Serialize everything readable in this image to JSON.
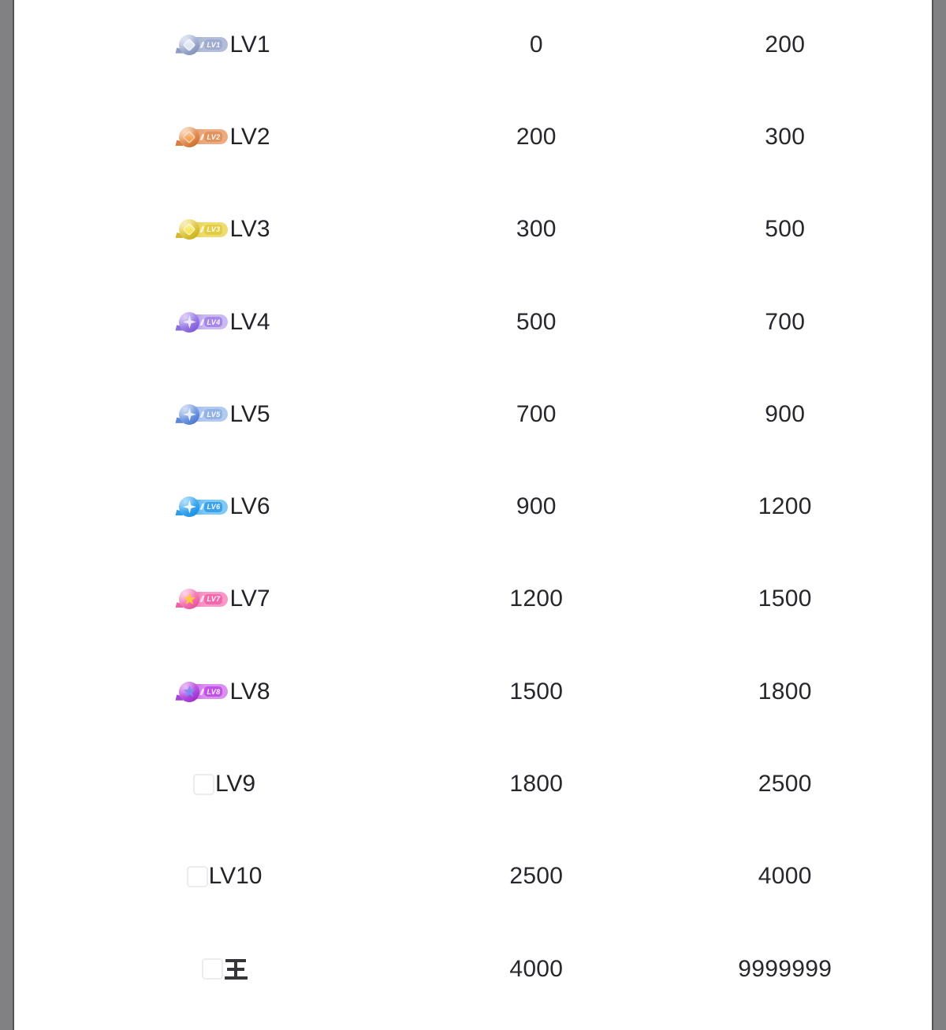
{
  "page": {
    "background": "#ffffff",
    "gutter_color": "#818184",
    "gutter_edge_color": "#545457",
    "text_color": "#27272d"
  },
  "table": {
    "rows": [
      {
        "level": "LV1",
        "min": "0",
        "max": "200",
        "badge": {
          "label": "LV1",
          "shape": "diamond",
          "pill": "#b3bdd9",
          "tag": "#9facd0",
          "circle_from": "#c9d2e8",
          "circle_to": "#8492bc",
          "gem": "#dfe5f4"
        }
      },
      {
        "level": "LV2",
        "min": "200",
        "max": "300",
        "badge": {
          "label": "LV2",
          "shape": "diamond",
          "pill": "#eeab7f",
          "tag": "#e1935c",
          "circle_from": "#f6bd92",
          "circle_to": "#d06f2e",
          "gem": "#f5a55a"
        }
      },
      {
        "level": "LV3",
        "min": "300",
        "max": "500",
        "badge": {
          "label": "LV3",
          "shape": "diamond",
          "pill": "#eedc70",
          "tag": "#e2cc42",
          "circle_from": "#f4e382",
          "circle_to": "#cdb11f",
          "gem": "#f7e75f"
        }
      },
      {
        "level": "LV4",
        "min": "500",
        "max": "700",
        "badge": {
          "label": "LV4",
          "shape": "sparkle",
          "pill": "#cbb9f3",
          "tag": "#a787e9",
          "circle_from": "#bfa9f0",
          "circle_to": "#7e5bdb",
          "gem": "#efeaff"
        }
      },
      {
        "level": "LV5",
        "min": "700",
        "max": "900",
        "badge": {
          "label": "LV5",
          "shape": "sparkle",
          "pill": "#b3caf0",
          "tag": "#93b2e7",
          "circle_from": "#a9c2f0",
          "circle_to": "#4b7ad3",
          "gem": "#eaf1ff"
        }
      },
      {
        "level": "LV6",
        "min": "900",
        "max": "1200",
        "badge": {
          "label": "LV6",
          "shape": "sparkle",
          "pill": "#7fc9f4",
          "tag": "#3ba2ea",
          "circle_from": "#72c5f6",
          "circle_to": "#1a90e5",
          "gem": "#f2fbff"
        }
      },
      {
        "level": "LV7",
        "min": "1200",
        "max": "1500",
        "badge": {
          "label": "LV7",
          "shape": "star",
          "pill": "#f899c8",
          "tag": "#f268ad",
          "circle_from": "#fbaed2",
          "circle_to": "#ee4f9e",
          "gem": "#ffc83e"
        }
      },
      {
        "level": "LV8",
        "min": "1500",
        "max": "1800",
        "badge": {
          "label": "LV8",
          "shape": "star",
          "pill": "#db90f1",
          "tag": "#c252e5",
          "circle_from": "#d680f0",
          "circle_to": "#9e2ed1",
          "gem": "#7b8cf0"
        }
      },
      {
        "level": "LV9",
        "min": "1800",
        "max": "2500",
        "badge": null,
        "placeholder": true
      },
      {
        "level": "LV10",
        "min": "2500",
        "max": "4000",
        "badge": null,
        "placeholder": true
      },
      {
        "level": "王",
        "min": "4000",
        "max": "9999999",
        "badge": null,
        "placeholder": true,
        "king": true
      }
    ]
  }
}
